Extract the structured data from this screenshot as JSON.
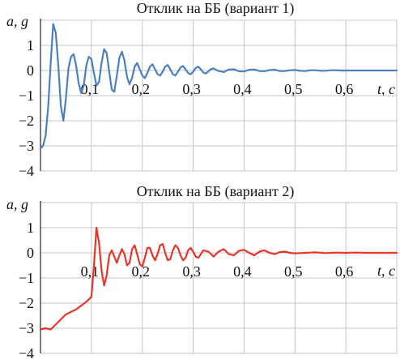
{
  "chart_data": [
    {
      "type": "line",
      "title": "Отклик на ББ (вариант 1)",
      "ylabel": "a, g",
      "xlabel": "t, c",
      "xlim": [
        0,
        0.7
      ],
      "ylim": [
        -4,
        2
      ],
      "xticks": [
        0.1,
        0.2,
        0.3,
        0.4,
        0.5,
        0.6
      ],
      "xtick_labels": [
        "0,1",
        "0,2",
        "0,3",
        "0,4",
        "0,5",
        "0,6"
      ],
      "yticks": [
        1,
        0,
        -1,
        -2,
        -3,
        -4
      ],
      "ytick_labels": [
        "1",
        "0",
        "−1",
        "−2",
        "−3",
        "−4"
      ],
      "grid": true,
      "series": [
        {
          "color": "#4a7fc1",
          "x": [
            0,
            0.005,
            0.01,
            0.015,
            0.02,
            0.025,
            0.03,
            0.035,
            0.04,
            0.045,
            0.05,
            0.055,
            0.06,
            0.065,
            0.07,
            0.075,
            0.08,
            0.085,
            0.09,
            0.095,
            0.1,
            0.105,
            0.11,
            0.115,
            0.12,
            0.125,
            0.13,
            0.135,
            0.14,
            0.145,
            0.15,
            0.155,
            0.16,
            0.165,
            0.17,
            0.175,
            0.18,
            0.185,
            0.19,
            0.195,
            0.2,
            0.205,
            0.21,
            0.215,
            0.22,
            0.225,
            0.23,
            0.235,
            0.24,
            0.245,
            0.25,
            0.255,
            0.26,
            0.265,
            0.27,
            0.275,
            0.28,
            0.285,
            0.29,
            0.295,
            0.3,
            0.305,
            0.31,
            0.315,
            0.32,
            0.325,
            0.33,
            0.335,
            0.34,
            0.345,
            0.35,
            0.36,
            0.37,
            0.38,
            0.39,
            0.4,
            0.41,
            0.42,
            0.43,
            0.44,
            0.45,
            0.46,
            0.47,
            0.48,
            0.49,
            0.5,
            0.51,
            0.52,
            0.53,
            0.54,
            0.55,
            0.56,
            0.57,
            0.58,
            0.59,
            0.6,
            0.62,
            0.64,
            0.66,
            0.68,
            0.7
          ],
          "y": [
            -3.1,
            -3.0,
            -2.6,
            -1.5,
            0.3,
            1.85,
            1.5,
            0.2,
            -1.4,
            -2.0,
            -1.1,
            0.1,
            0.55,
            0.65,
            0.2,
            -0.5,
            -0.9,
            -0.6,
            0.2,
            0.55,
            0.45,
            -0.1,
            -0.6,
            -0.45,
            0.3,
            0.85,
            0.7,
            -0.05,
            -0.75,
            -0.85,
            -0.2,
            0.5,
            0.75,
            0.4,
            -0.25,
            -0.55,
            -0.3,
            0.15,
            0.3,
            0.05,
            -0.2,
            -0.3,
            -0.1,
            0.15,
            0.25,
            0.05,
            -0.15,
            -0.2,
            -0.05,
            0.15,
            0.22,
            0.05,
            -0.15,
            -0.2,
            -0.05,
            0.12,
            0.18,
            0.05,
            -0.1,
            -0.15,
            -0.05,
            0.1,
            0.15,
            0.05,
            -0.08,
            -0.12,
            -0.04,
            0.06,
            0.08,
            0.03,
            -0.02,
            -0.06,
            0.04,
            0.05,
            -0.03,
            -0.04,
            0.03,
            0.04,
            -0.02,
            -0.03,
            0.02,
            0.03,
            -0.02,
            -0.02,
            0.01,
            0.02,
            -0.01,
            -0.02,
            0.01,
            0.01,
            -0.01,
            -0.01,
            0.01,
            0.01,
            0.0,
            0.0,
            0.0,
            0.0,
            0.0,
            0.0,
            0.0
          ]
        }
      ]
    },
    {
      "type": "line",
      "title": "Отклик на ББ (вариант 2)",
      "ylabel": "a, g",
      "xlabel": "t, c",
      "xlim": [
        0,
        0.7
      ],
      "ylim": [
        -4,
        2
      ],
      "xticks": [
        0.1,
        0.2,
        0.3,
        0.4,
        0.5,
        0.6
      ],
      "xtick_labels": [
        "0,1",
        "0,2",
        "0,3",
        "0,4",
        "0,5",
        "0,6"
      ],
      "yticks": [
        1,
        0,
        -1,
        -2,
        -3,
        -4
      ],
      "ytick_labels": [
        "1",
        "0",
        "−1",
        "−2",
        "−3",
        "−4"
      ],
      "grid": true,
      "series": [
        {
          "color": "#e8352b",
          "x": [
            0,
            0.01,
            0.02,
            0.03,
            0.04,
            0.05,
            0.06,
            0.07,
            0.08,
            0.09,
            0.1,
            0.105,
            0.11,
            0.115,
            0.12,
            0.125,
            0.13,
            0.135,
            0.14,
            0.145,
            0.15,
            0.155,
            0.16,
            0.165,
            0.17,
            0.175,
            0.18,
            0.185,
            0.19,
            0.195,
            0.2,
            0.205,
            0.21,
            0.215,
            0.22,
            0.225,
            0.23,
            0.235,
            0.24,
            0.245,
            0.25,
            0.255,
            0.26,
            0.265,
            0.27,
            0.275,
            0.28,
            0.285,
            0.29,
            0.295,
            0.3,
            0.305,
            0.31,
            0.315,
            0.32,
            0.33,
            0.34,
            0.35,
            0.36,
            0.37,
            0.38,
            0.39,
            0.4,
            0.41,
            0.42,
            0.43,
            0.44,
            0.45,
            0.46,
            0.47,
            0.48,
            0.49,
            0.5,
            0.52,
            0.54,
            0.56,
            0.58,
            0.6,
            0.62,
            0.64,
            0.66,
            0.68,
            0.7
          ],
          "y": [
            -3.05,
            -3.0,
            -3.05,
            -2.85,
            -2.65,
            -2.45,
            -2.35,
            -2.25,
            -2.1,
            -1.95,
            -1.75,
            -0.5,
            1.0,
            0.4,
            -0.7,
            -1.3,
            -0.9,
            -0.1,
            0.1,
            -0.15,
            -0.4,
            -0.1,
            0.15,
            -0.05,
            -0.5,
            -0.4,
            0.15,
            0.3,
            -0.05,
            -0.45,
            -0.55,
            -0.2,
            0.2,
            0.2,
            -0.1,
            -0.3,
            -0.05,
            0.3,
            0.35,
            0.0,
            -0.3,
            -0.25,
            0.1,
            0.3,
            0.2,
            -0.1,
            -0.3,
            -0.2,
            0.1,
            0.2,
            0.05,
            -0.15,
            -0.2,
            -0.05,
            0.1,
            0.05,
            -0.15,
            0.05,
            0.15,
            -0.05,
            -0.1,
            0.08,
            0.12,
            0.0,
            -0.1,
            0.05,
            0.1,
            0.0,
            -0.05,
            0.03,
            0.05,
            0.0,
            -0.02,
            0.0,
            0.02,
            -0.01,
            0.01,
            0.0,
            0.01,
            0.0,
            0.0,
            0.0,
            0.0
          ]
        }
      ]
    }
  ]
}
